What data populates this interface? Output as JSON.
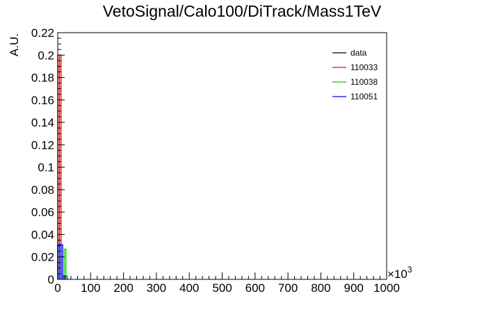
{
  "chart_data": {
    "type": "bar",
    "title": "VetoSignal/Calo100/DiTrack/Mass1TeV",
    "xlabel": "",
    "ylabel": "A.U.",
    "x_multiplier_label": "×10",
    "x_multiplier_exponent": "3",
    "xlim": [
      0,
      1000
    ],
    "ylim": [
      0,
      0.22
    ],
    "x_ticks": [
      "0",
      "100",
      "200",
      "300",
      "400",
      "500",
      "600",
      "700",
      "800",
      "900",
      "1000"
    ],
    "y_ticks": [
      "0",
      "0.02",
      "0.04",
      "0.06",
      "0.08",
      "0.1",
      "0.12",
      "0.14",
      "0.16",
      "0.18",
      "0.2",
      "0.22"
    ],
    "grid": false,
    "legend_position": "top-right",
    "series": [
      {
        "name": "data",
        "color": "#000000",
        "bins": []
      },
      {
        "name": "110033",
        "color": "#ff0000",
        "bins": [
          {
            "x0": 0,
            "x1": 5,
            "y": 0.2
          },
          {
            "x0": 5,
            "x1": 10,
            "y": 0.2
          }
        ]
      },
      {
        "name": "110038",
        "color": "#00cc00",
        "bins": [
          {
            "x0": 0,
            "x1": 5,
            "y": 0.03
          },
          {
            "x0": 20,
            "x1": 25,
            "y": 0.027
          },
          {
            "x0": 25,
            "x1": 30,
            "y": 0.003
          }
        ]
      },
      {
        "name": "110051",
        "color": "#0000ff",
        "bins": [
          {
            "x0": 0,
            "x1": 5,
            "y": 0.031
          },
          {
            "x0": 5,
            "x1": 10,
            "y": 0.031
          },
          {
            "x0": 10,
            "x1": 15,
            "y": 0.031
          },
          {
            "x0": 15,
            "x1": 20,
            "y": 0.003
          },
          {
            "x0": 20,
            "x1": 25,
            "y": 0.003
          }
        ]
      }
    ]
  }
}
